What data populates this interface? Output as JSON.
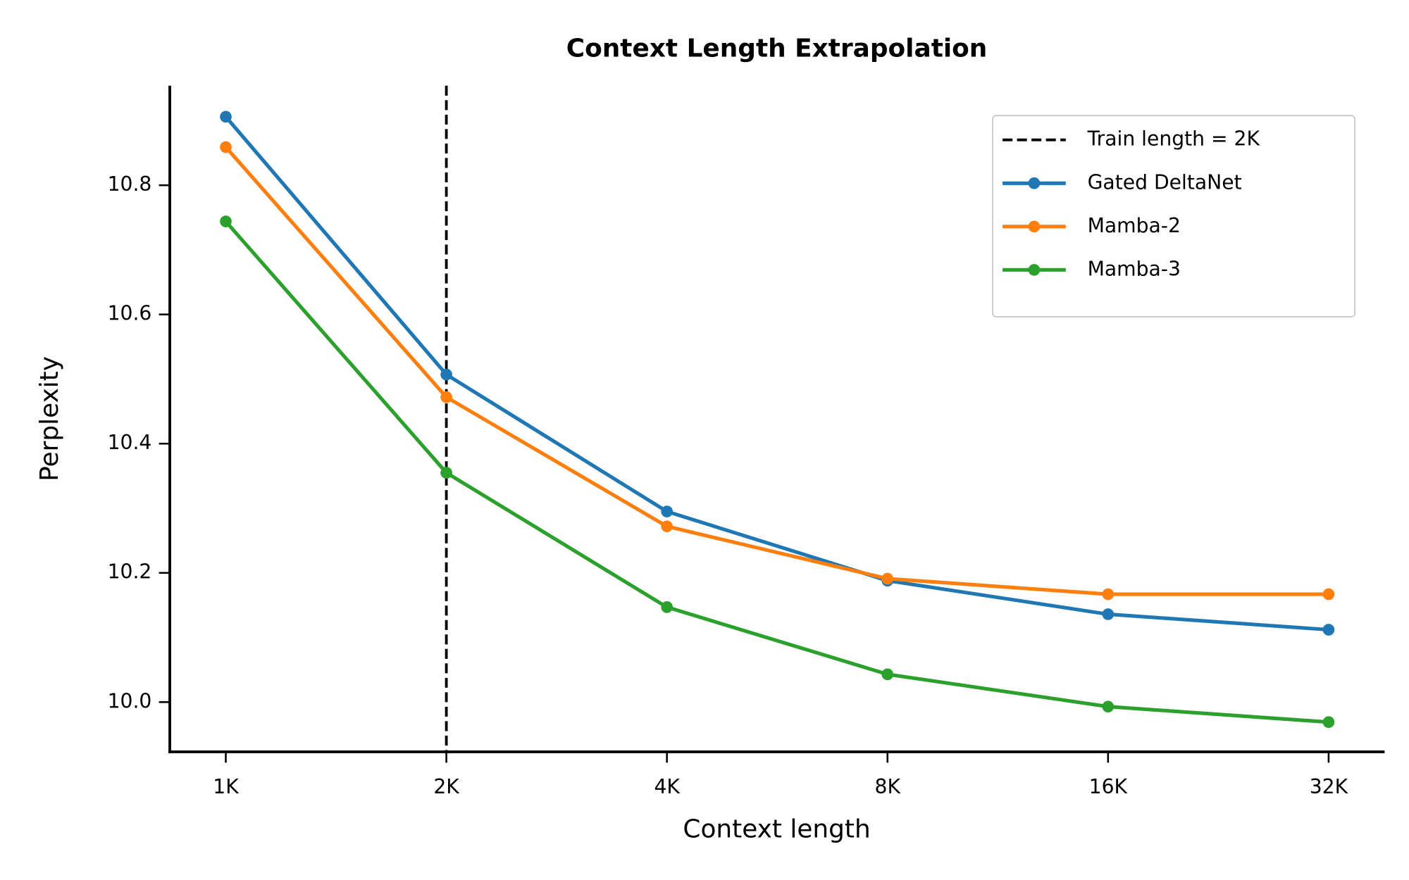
{
  "chart_data": {
    "type": "line",
    "title": "Context Length Extrapolation",
    "x_label": "Context length",
    "y_label": "Perplexity",
    "categories": [
      "1K",
      "2K",
      "4K",
      "8K",
      "16K",
      "32K"
    ],
    "series": [
      {
        "name": "Gated DeltaNet",
        "color": "#1f77b4",
        "values": [
          10.906,
          10.507,
          10.295,
          10.188,
          10.136,
          10.112
        ]
      },
      {
        "name": "Mamba-2",
        "color": "#ff7f0e",
        "values": [
          10.859,
          10.472,
          10.272,
          10.191,
          10.167,
          10.167
        ]
      },
      {
        "name": "Mamba-3",
        "color": "#2ca02c",
        "values": [
          10.744,
          10.355,
          10.147,
          10.043,
          9.993,
          9.969
        ]
      }
    ],
    "vline": {
      "x": "2K",
      "label": "Train length = 2K",
      "color": "#000000"
    },
    "ylim": [
      9.923,
      10.954
    ],
    "yticks": [
      {
        "value": 10.0,
        "label": "10.0"
      },
      {
        "value": 10.2,
        "label": "10.2"
      },
      {
        "value": 10.4,
        "label": "10.4"
      },
      {
        "value": 10.6,
        "label": "10.6"
      },
      {
        "value": 10.8,
        "label": "10.8"
      }
    ],
    "legend": "upper right",
    "grid": false
  }
}
